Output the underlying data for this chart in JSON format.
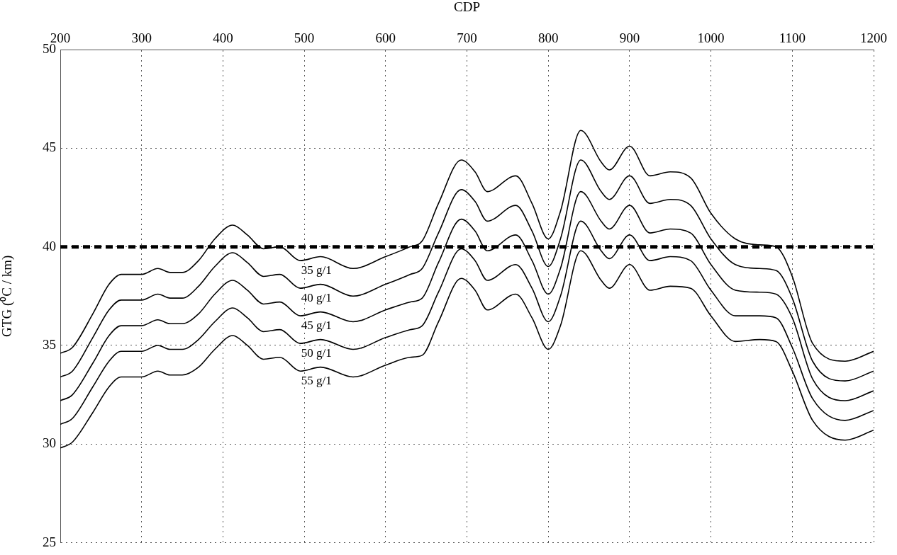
{
  "chart_data": {
    "type": "line",
    "xlabel": "CDP",
    "ylabel": "GTG (⁰C / km)",
    "x": [
      200,
      215,
      240,
      260,
      275,
      300,
      320,
      335,
      350,
      370,
      390,
      412,
      430,
      450,
      470,
      495,
      520,
      560,
      600,
      630,
      645,
      665,
      693,
      710,
      725,
      760,
      780,
      800,
      815,
      840,
      865,
      875,
      900,
      925,
      950,
      975,
      1000,
      1030,
      1060,
      1080,
      1100,
      1125,
      1165,
      1200
    ],
    "series": [
      {
        "name": "35 g/1",
        "color": "#000000",
        "values": [
          34.6,
          34.9,
          36.6,
          38.1,
          38.6,
          38.6,
          38.9,
          38.7,
          38.7,
          39.3,
          40.4,
          41.1,
          40.6,
          39.9,
          40.0,
          39.3,
          39.5,
          38.9,
          39.5,
          40.0,
          40.3,
          42.2,
          44.4,
          43.8,
          42.8,
          43.6,
          42.2,
          40.4,
          41.8,
          45.9,
          44.3,
          43.9,
          45.1,
          43.6,
          43.8,
          43.5,
          41.7,
          40.4,
          40.1,
          40.0,
          38.5,
          35.1,
          34.2,
          34.7
        ]
      },
      {
        "name": "40 g/1",
        "color": "#000000",
        "values": [
          33.4,
          33.7,
          35.4,
          36.8,
          37.3,
          37.3,
          37.6,
          37.4,
          37.4,
          38.0,
          39.0,
          39.7,
          39.2,
          38.5,
          38.6,
          37.9,
          38.1,
          37.5,
          38.1,
          38.6,
          38.9,
          40.7,
          42.9,
          42.3,
          41.3,
          42.1,
          40.8,
          39.0,
          40.4,
          44.4,
          42.8,
          42.4,
          43.6,
          42.2,
          42.4,
          42.1,
          40.4,
          39.1,
          38.9,
          38.8,
          37.4,
          34.2,
          33.2,
          33.7
        ]
      },
      {
        "name": "45 g/1",
        "color": "#000000",
        "values": [
          32.2,
          32.5,
          34.1,
          35.5,
          36.0,
          36.0,
          36.3,
          36.1,
          36.1,
          36.6,
          37.6,
          38.3,
          37.8,
          37.1,
          37.2,
          36.5,
          36.7,
          36.2,
          36.8,
          37.2,
          37.4,
          39.2,
          41.4,
          40.8,
          39.8,
          40.6,
          39.3,
          37.6,
          38.9,
          42.8,
          41.3,
          40.9,
          42.1,
          40.7,
          40.9,
          40.7,
          39.1,
          37.8,
          37.7,
          37.6,
          36.4,
          33.3,
          32.2,
          32.7
        ]
      },
      {
        "name": "50 g/1",
        "color": "#000000",
        "values": [
          31.0,
          31.3,
          32.9,
          34.2,
          34.7,
          34.7,
          35.0,
          34.8,
          34.8,
          35.3,
          36.2,
          36.9,
          36.4,
          35.7,
          35.8,
          35.1,
          35.3,
          34.8,
          35.4,
          35.8,
          36.0,
          37.7,
          39.9,
          39.3,
          38.3,
          39.1,
          37.9,
          36.2,
          37.5,
          41.3,
          39.8,
          39.4,
          40.6,
          39.3,
          39.5,
          39.3,
          37.8,
          36.5,
          36.5,
          36.4,
          34.9,
          32.3,
          31.2,
          31.7
        ]
      },
      {
        "name": "55 g/1",
        "color": "#000000",
        "values": [
          29.8,
          30.1,
          31.6,
          32.9,
          33.4,
          33.4,
          33.7,
          33.5,
          33.5,
          33.9,
          34.8,
          35.5,
          35.0,
          34.3,
          34.4,
          33.7,
          33.9,
          33.4,
          34.0,
          34.4,
          34.5,
          36.2,
          38.4,
          37.8,
          36.8,
          37.6,
          36.4,
          34.8,
          36.0,
          39.8,
          38.3,
          37.9,
          39.1,
          37.8,
          38.0,
          37.9,
          36.5,
          35.2,
          35.3,
          35.2,
          33.7,
          31.2,
          30.2,
          30.7
        ]
      }
    ],
    "xlim": [
      200,
      1200
    ],
    "xticks": [
      200,
      300,
      400,
      500,
      600,
      700,
      800,
      900,
      1000,
      1100,
      1200
    ],
    "ylim": [
      25,
      50
    ],
    "yticks": [
      25,
      30,
      35,
      40,
      45,
      50
    ],
    "ref_lines": [
      {
        "axis": "y",
        "value": 40,
        "color": "#000000",
        "line_style": "dashed"
      }
    ],
    "grid": true,
    "legend": false,
    "marker": "none",
    "line_style": "solid"
  }
}
